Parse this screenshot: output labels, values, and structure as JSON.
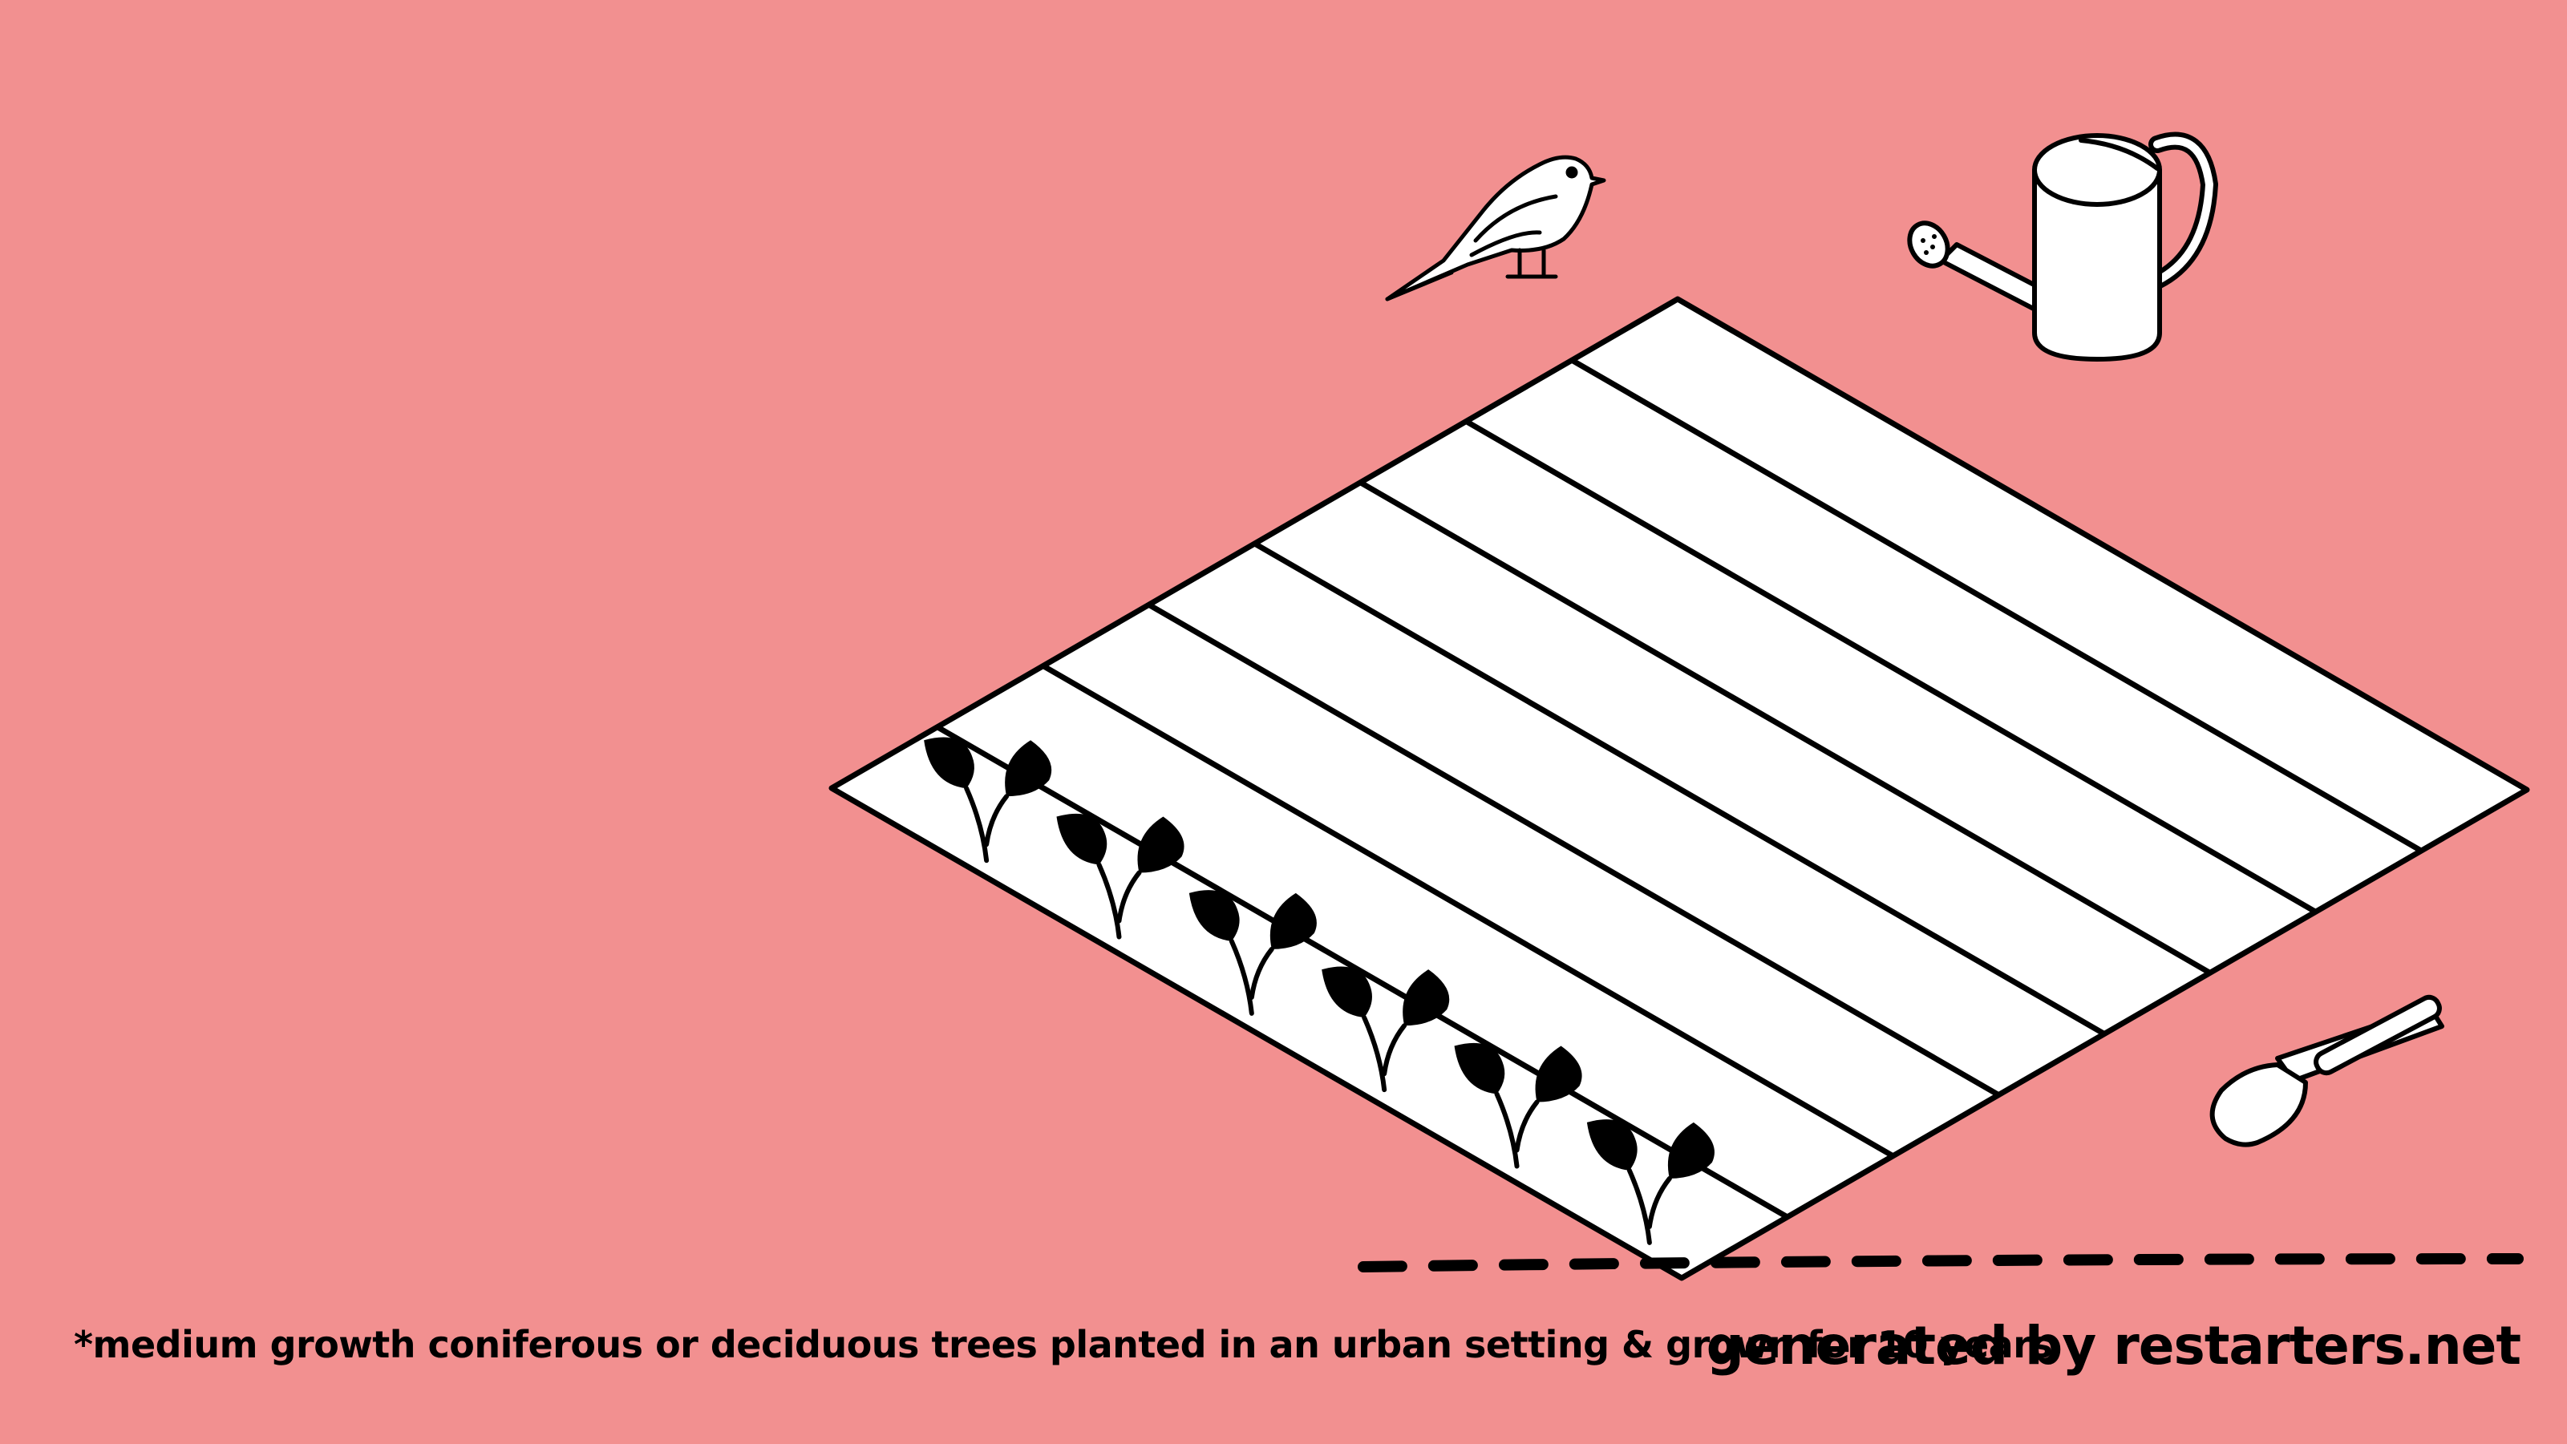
{
  "colors": {
    "background": "#F29090",
    "ink": "#000000",
    "paper": "#FFFFFF"
  },
  "footer": {
    "footnote": "*medium growth coniferous or deciduous trees planted in an urban setting & grown for 10 years",
    "credit": "generated by restarters.net"
  },
  "illustration": {
    "plot_rows": 8,
    "planted_rows": 1,
    "seedlings_in_planted_row": 6,
    "icons": [
      "bird-icon",
      "watering-can-icon",
      "trowel-icon",
      "seedling-icon"
    ]
  }
}
